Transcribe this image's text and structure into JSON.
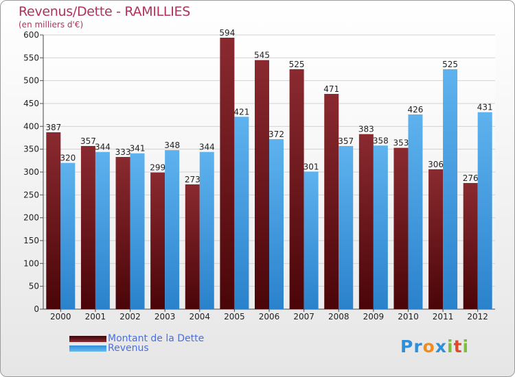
{
  "chart_data": {
    "type": "bar",
    "title": "Revenus/Dette - RAMILLIES",
    "subtitle": "(en milliers d'€)",
    "categories": [
      "2000",
      "2001",
      "2002",
      "2003",
      "2004",
      "2005",
      "2006",
      "2007",
      "2008",
      "2009",
      "2010",
      "2011",
      "2012"
    ],
    "series": [
      {
        "name": "Montant de la Dette",
        "color": "#7a1f24",
        "values": [
          387,
          357,
          333,
          299,
          273,
          594,
          545,
          525,
          471,
          383,
          353,
          306,
          276
        ]
      },
      {
        "name": "Revenus",
        "color": "#3d9ae6",
        "values": [
          320,
          344,
          341,
          348,
          344,
          421,
          372,
          301,
          357,
          358,
          426,
          525,
          431
        ]
      }
    ],
    "ylim": [
      0,
      600
    ],
    "yticks": [
      0,
      50,
      100,
      150,
      200,
      250,
      300,
      350,
      400,
      450,
      500,
      550,
      600
    ],
    "grid": true,
    "legend_position": "bottom-left"
  },
  "logo": {
    "text": "Proxiti",
    "letters": [
      "P",
      "r",
      "o",
      "x",
      "i",
      "t",
      "i"
    ],
    "colors": [
      "#2f8fd8",
      "#2f8fd8",
      "#f08c1e",
      "#2f8fd8",
      "#7bbf3a",
      "#e04a2a",
      "#7bbf3a"
    ]
  }
}
